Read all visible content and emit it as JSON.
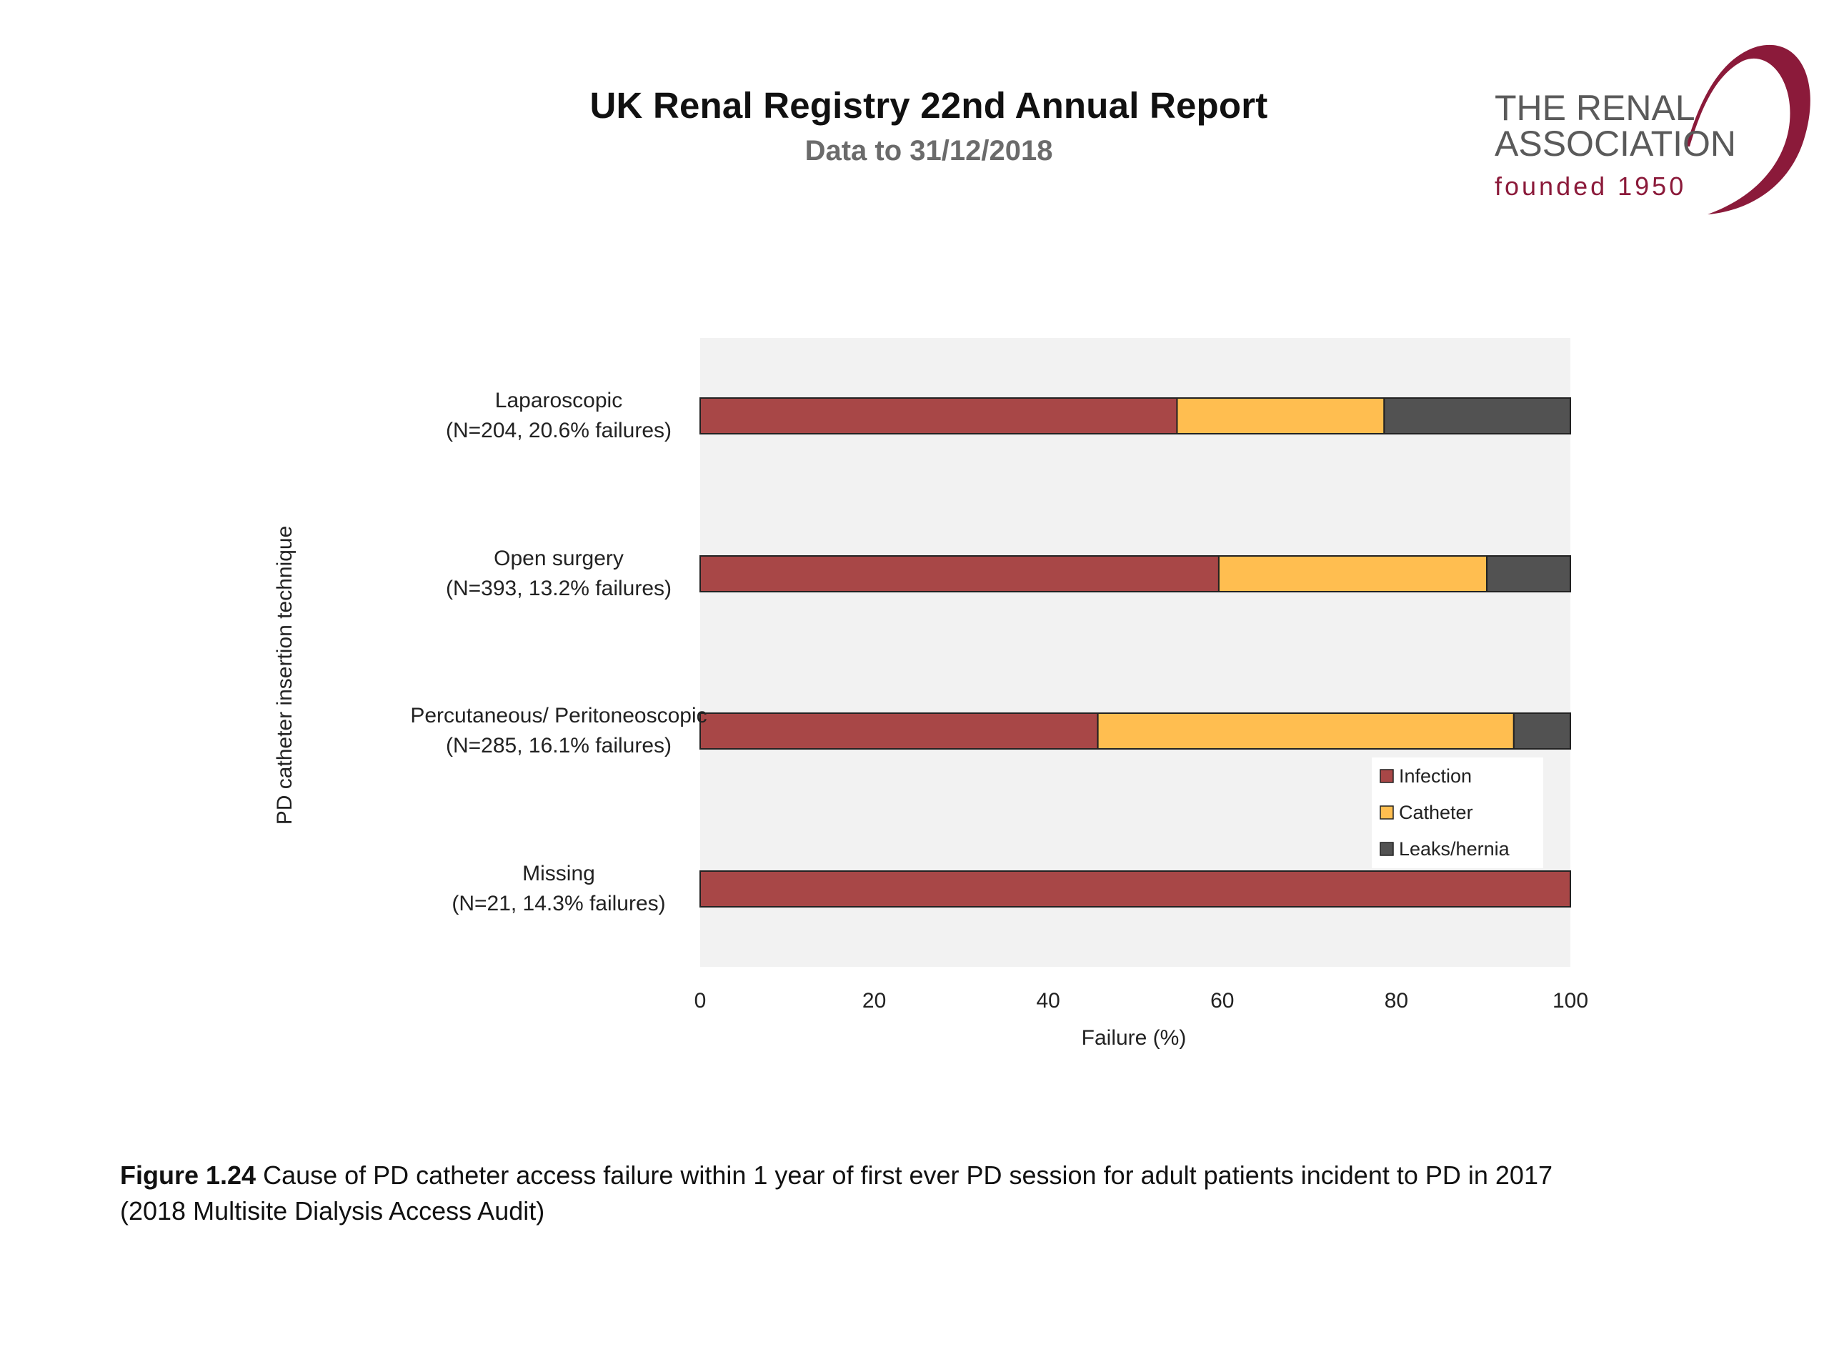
{
  "header": {
    "title": "UK Renal Registry 22nd Annual Report",
    "subtitle": "Data to 31/12/2018"
  },
  "logo": {
    "line1": "THE RENAL",
    "line2": "ASSOCIATION",
    "line3": "founded 1950",
    "color": "#8b1a3a"
  },
  "chart_data": {
    "type": "bar",
    "orientation": "horizontal",
    "stacked": true,
    "title": "",
    "xlabel": "Failure (%)",
    "ylabel": "PD catheter insertion technique",
    "xlim": [
      0,
      100
    ],
    "xticks": [
      0,
      20,
      40,
      60,
      80,
      100
    ],
    "grid": false,
    "legend_position": "inside-bottom-right",
    "categories": [
      [
        "Laparoscopic",
        "(N=204, 20.6% failures)"
      ],
      [
        "Open surgery",
        "(N=393, 13.2% failures)"
      ],
      [
        "Percutaneous/ Peritoneoscopic",
        "(N=285, 16.1% failures)"
      ],
      [
        "Missing",
        "(N=21, 14.3% failures)"
      ]
    ],
    "series": [
      {
        "name": "Infection",
        "color": "#a84747",
        "values": [
          54.8,
          59.6,
          45.7,
          100
        ]
      },
      {
        "name": "Catheter",
        "color": "#ffbe50",
        "values": [
          23.8,
          30.8,
          47.8,
          0
        ]
      },
      {
        "name": "Leaks/hernia",
        "color": "#525252",
        "values": [
          21.4,
          9.6,
          6.5,
          0
        ]
      }
    ]
  },
  "caption": {
    "label": "Figure 1.24",
    "line1": " Cause of PD catheter access failure within 1 year of first ever PD session for adult patients incident to PD in 2017",
    "line2": "(2018 Multisite Dialysis Access Audit)"
  }
}
